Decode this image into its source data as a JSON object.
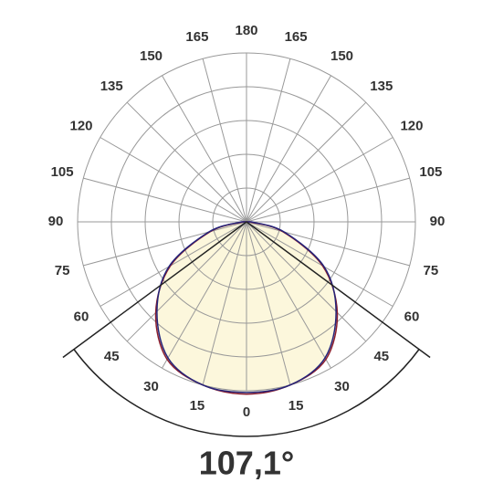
{
  "chart_data": {
    "type": "polar",
    "angles": [
      -90,
      -75,
      -60,
      -45,
      -30,
      -15,
      0,
      15,
      30,
      45,
      60,
      75,
      90
    ],
    "series": [
      {
        "color": "#8b1e2e",
        "values": [
          0.02,
          0.22,
          0.52,
          0.76,
          0.94,
          1.0,
          1.02,
          1.0,
          0.94,
          0.76,
          0.52,
          0.22,
          0.02
        ]
      },
      {
        "color": "#23237a",
        "values": [
          0.03,
          0.23,
          0.53,
          0.75,
          0.93,
          1.0,
          1.01,
          1.0,
          0.93,
          0.75,
          0.53,
          0.23,
          0.03
        ]
      }
    ],
    "fill": "#fcf7dc",
    "rlim": [
      0,
      1
    ],
    "rticks": [
      0.2,
      0.4,
      0.6,
      0.8,
      1
    ],
    "angle_ticks": [
      0,
      15,
      30,
      45,
      60,
      75,
      90,
      105,
      120,
      135,
      150,
      165,
      180,
      {
        "value": -15,
        "label": "15"
      },
      {
        "value": -30,
        "label": "30"
      },
      {
        "value": -45,
        "label": "45"
      },
      {
        "value": -60,
        "label": "60"
      },
      {
        "value": -75,
        "label": "75"
      },
      {
        "value": -90,
        "label": "90"
      },
      {
        "value": -105,
        "label": "105"
      },
      {
        "value": -120,
        "label": "120"
      },
      {
        "value": -135,
        "label": "135"
      },
      {
        "value": -150,
        "label": "150"
      },
      {
        "value": -165,
        "label": "165"
      }
    ],
    "grid": true,
    "beam_angle": {
      "value": 107.1,
      "label": "107,1°"
    }
  }
}
